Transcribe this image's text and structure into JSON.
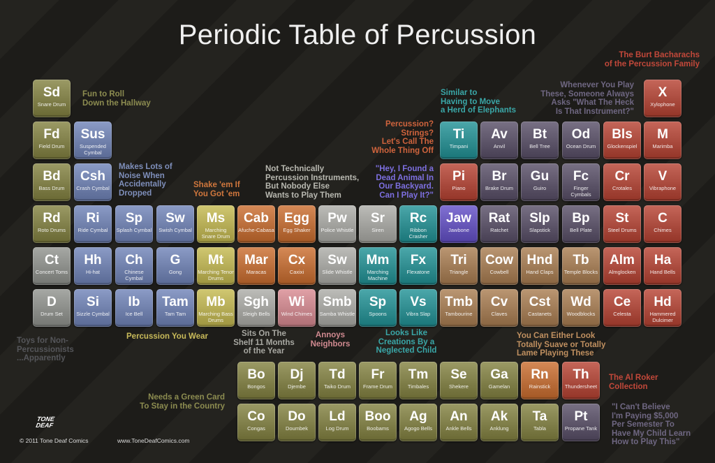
{
  "title": "Periodic Table of Percussion",
  "colors": {
    "grey": "#8a8c88",
    "olive": "#7f7e49",
    "blue": "#6f7faa",
    "yellow": "#b4ab55",
    "orange": "#b96d3a",
    "pink": "#c4848a",
    "light_grey": "#a0a09c",
    "teal": "#2f8b8e",
    "purple": "#6555b7",
    "brown": "#9e7a56",
    "dark_purple": "#5c5468",
    "red": "#a94a3d"
  },
  "elements": [
    {
      "symbol": "Sd",
      "name": "Snare Drum",
      "group": "olive"
    },
    {
      "symbol": "Fd",
      "name": "Field Drum",
      "group": "olive"
    },
    {
      "symbol": "Sus",
      "name": "Suspended Cymbal",
      "group": "blue"
    },
    {
      "symbol": "Bd",
      "name": "Bass Drum",
      "group": "olive"
    },
    {
      "symbol": "Csh",
      "name": "Crash Cymbal",
      "group": "blue"
    },
    {
      "symbol": "Rd",
      "name": "Roto Drums",
      "group": "olive"
    },
    {
      "symbol": "Ri",
      "name": "Ride Cymbal",
      "group": "blue"
    },
    {
      "symbol": "Sp",
      "name": "Splash Cymbal",
      "group": "blue"
    },
    {
      "symbol": "Sw",
      "name": "Swish Cymbal",
      "group": "blue"
    },
    {
      "symbol": "Ms",
      "name": "Marching Snare Drum",
      "group": "yellow"
    },
    {
      "symbol": "Cab",
      "name": "Afuche-Cabasa",
      "group": "orange"
    },
    {
      "symbol": "Egg",
      "name": "Egg Shaker",
      "group": "orange"
    },
    {
      "symbol": "Pw",
      "name": "Police Whistle",
      "group": "light_grey"
    },
    {
      "symbol": "Sr",
      "name": "Siren",
      "group": "light_grey"
    },
    {
      "symbol": "Rc",
      "name": "Ribbon Crasher",
      "group": "teal"
    },
    {
      "symbol": "Jaw",
      "name": "Jawbone",
      "group": "purple"
    },
    {
      "symbol": "Rat",
      "name": "Ratchet",
      "group": "dark_purple"
    },
    {
      "symbol": "Slp",
      "name": "Slapstick",
      "group": "dark_purple"
    },
    {
      "symbol": "Bp",
      "name": "Bell Plate",
      "group": "dark_purple"
    },
    {
      "symbol": "St",
      "name": "Steel Drums",
      "group": "red"
    },
    {
      "symbol": "C",
      "name": "Chimes",
      "group": "red"
    },
    {
      "symbol": "Ct",
      "name": "Concert Toms",
      "group": "grey"
    },
    {
      "symbol": "Hh",
      "name": "Hi-hat",
      "group": "blue"
    },
    {
      "symbol": "Ch",
      "name": "Chinese Cymbal",
      "group": "blue"
    },
    {
      "symbol": "G",
      "name": "Gong",
      "group": "blue"
    },
    {
      "symbol": "Mt",
      "name": "Marching Tenor Drums",
      "group": "yellow"
    },
    {
      "symbol": "Mar",
      "name": "Maracas",
      "group": "orange"
    },
    {
      "symbol": "Cx",
      "name": "Caxixi",
      "group": "orange"
    },
    {
      "symbol": "Sw",
      "name": "Slide Whistle",
      "group": "light_grey"
    },
    {
      "symbol": "Mm",
      "name": "Marching Machine",
      "group": "teal"
    },
    {
      "symbol": "Fx",
      "name": "Flexatone",
      "group": "teal"
    },
    {
      "symbol": "Tri",
      "name": "Triangle",
      "group": "brown"
    },
    {
      "symbol": "Cow",
      "name": "Cowbell",
      "group": "brown"
    },
    {
      "symbol": "Hnd",
      "name": "Hand Claps",
      "group": "brown"
    },
    {
      "symbol": "Tb",
      "name": "Temple Blocks",
      "group": "brown"
    },
    {
      "symbol": "Alm",
      "name": "Almglocken",
      "group": "red"
    },
    {
      "symbol": "Ha",
      "name": "Hand Bells",
      "group": "red"
    },
    {
      "symbol": "D",
      "name": "Drum Set",
      "group": "grey"
    },
    {
      "symbol": "Si",
      "name": "Sizzle Cymbal",
      "group": "blue"
    },
    {
      "symbol": "Ib",
      "name": "Ice Bell",
      "group": "blue"
    },
    {
      "symbol": "Tam",
      "name": "Tam Tam",
      "group": "blue"
    },
    {
      "symbol": "Mb",
      "name": "Marching Bass Drums",
      "group": "yellow"
    },
    {
      "symbol": "Sgh",
      "name": "Sleigh Bells",
      "group": "light_grey"
    },
    {
      "symbol": "Wi",
      "name": "Wind Chimes",
      "group": "pink"
    },
    {
      "symbol": "Smb",
      "name": "Samba Whistle",
      "group": "light_grey"
    },
    {
      "symbol": "Sp",
      "name": "Spoons",
      "group": "teal"
    },
    {
      "symbol": "Vs",
      "name": "Vibra Slap",
      "group": "teal"
    },
    {
      "symbol": "Tmb",
      "name": "Tambourine",
      "group": "brown"
    },
    {
      "symbol": "Cv",
      "name": "Claves",
      "group": "brown"
    },
    {
      "symbol": "Cst",
      "name": "Castanets",
      "group": "brown"
    },
    {
      "symbol": "Wd",
      "name": "Woodblocks",
      "group": "brown"
    },
    {
      "symbol": "Ce",
      "name": "Celesta",
      "group": "red"
    },
    {
      "symbol": "Hd",
      "name": "Hammered Dulcimer",
      "group": "red"
    },
    {
      "symbol": "X",
      "name": "Xylophone",
      "group": "red"
    },
    {
      "symbol": "Ti",
      "name": "Timpani",
      "group": "teal"
    },
    {
      "symbol": "Av",
      "name": "Anvil",
      "group": "dark_purple"
    },
    {
      "symbol": "Bt",
      "name": "Bell Tree",
      "group": "dark_purple"
    },
    {
      "symbol": "Od",
      "name": "Ocean Drum",
      "group": "dark_purple"
    },
    {
      "symbol": "Bls",
      "name": "Glockenspiel",
      "group": "red"
    },
    {
      "symbol": "M",
      "name": "Marimba",
      "group": "red"
    },
    {
      "symbol": "Pi",
      "name": "Piano",
      "group": "red"
    },
    {
      "symbol": "Br",
      "name": "Brake Drum",
      "group": "dark_purple"
    },
    {
      "symbol": "Gu",
      "name": "Guiro",
      "group": "dark_purple"
    },
    {
      "symbol": "Fc",
      "name": "Finger Cymbals",
      "group": "dark_purple"
    },
    {
      "symbol": "Cr",
      "name": "Crotales",
      "group": "red"
    },
    {
      "symbol": "V",
      "name": "Vibraphone",
      "group": "red"
    },
    {
      "symbol": "Bo",
      "name": "Bongos",
      "group": "olive"
    },
    {
      "symbol": "Dj",
      "name": "Djembe",
      "group": "olive"
    },
    {
      "symbol": "Td",
      "name": "Taiko Drum",
      "group": "olive"
    },
    {
      "symbol": "Fr",
      "name": "Frame Drum",
      "group": "olive"
    },
    {
      "symbol": "Tm",
      "name": "Timbales",
      "group": "olive"
    },
    {
      "symbol": "Se",
      "name": "Shekere",
      "group": "olive"
    },
    {
      "symbol": "Ga",
      "name": "Gamelan",
      "group": "olive"
    },
    {
      "symbol": "Rn",
      "name": "Rainstick",
      "group": "orange"
    },
    {
      "symbol": "Th",
      "name": "Thundersheet",
      "group": "red"
    },
    {
      "symbol": "Co",
      "name": "Congas",
      "group": "olive"
    },
    {
      "symbol": "Do",
      "name": "Doumbek",
      "group": "olive"
    },
    {
      "symbol": "Ld",
      "name": "Log Drum",
      "group": "olive"
    },
    {
      "symbol": "Boo",
      "name": "Boobams",
      "group": "olive"
    },
    {
      "symbol": "Ag",
      "name": "Agogo Bells",
      "group": "olive"
    },
    {
      "symbol": "An",
      "name": "Ankle Bells",
      "group": "olive"
    },
    {
      "symbol": "Ak",
      "name": "Anklung",
      "group": "olive"
    },
    {
      "symbol": "Ta",
      "name": "Tabla",
      "group": "olive"
    },
    {
      "symbol": "Pt",
      "name": "Propane Tank",
      "group": "dark_purple"
    }
  ],
  "annotations": [
    {
      "text": "Fun to Roll\nDown the Hallway",
      "color": "#8c8c50"
    },
    {
      "text": "Makes Lots of\nNoise When\nAccidentally\nDropped",
      "color": "#7f8fbb"
    },
    {
      "text": "Shake 'em If\nYou Got 'em",
      "color": "#d0773d"
    },
    {
      "text": "Not Technically\nPercussion Instruments,\nBut Nobody Else\nWants to Play Them",
      "color": "#b8b8b0"
    },
    {
      "text": "Percussion?\nStrings?\nLet's Call The\nWhole Thing Off",
      "color": "#d0643d"
    },
    {
      "text": "\"Hey, I Found a\nDead Animal In\nOur Backyard.\nCan I Play It?\"",
      "color": "#7d6fe0"
    },
    {
      "text": "Similar to\nHaving to Move\na Herd of Elephants",
      "color": "#3aa7a8"
    },
    {
      "text": "Whenever You Play\nThese, Someone Always\nAsks \"What The Heck\nIs That Instrument?\"",
      "color": "#6f6782"
    },
    {
      "text": "The Burt Bacharachs\nof the Percussion Family",
      "color": "#c2483a"
    },
    {
      "text": "Toys for Non-\nPercussionists\n...Apparently",
      "color": "#55565a"
    },
    {
      "text": "Percussion You Wear",
      "color": "#c9bb5a"
    },
    {
      "text": "Sits On The\nShelf 11 Months\nof the Year",
      "color": "#a8a8a2"
    },
    {
      "text": "Annoys\nNeighbors",
      "color": "#d08a90"
    },
    {
      "text": "Looks Like\nCreations By a\nNeglected Child",
      "color": "#3aa7a8"
    },
    {
      "text": "You Can Either Look\nTotally Suave or Totally\nLame Playing These",
      "color": "#c09060"
    },
    {
      "text": "The Al Roker\nCollection",
      "color": "#c2483a"
    },
    {
      "text": "\"I Can't Believe\nI'm Paying $5,000\nPer Semester To\nHave My Child Learn\nHow to Play This\"",
      "color": "#6f6782"
    },
    {
      "text": "Needs a Green Card\nTo Stay in the Country",
      "color": "#8c8c50"
    }
  ],
  "logo": {
    "line1": "TONE",
    "line2": "DEAF"
  },
  "footer": {
    "copyright": "© 2011 Tone Deaf Comics",
    "website": "www.ToneDeafComics.com"
  }
}
